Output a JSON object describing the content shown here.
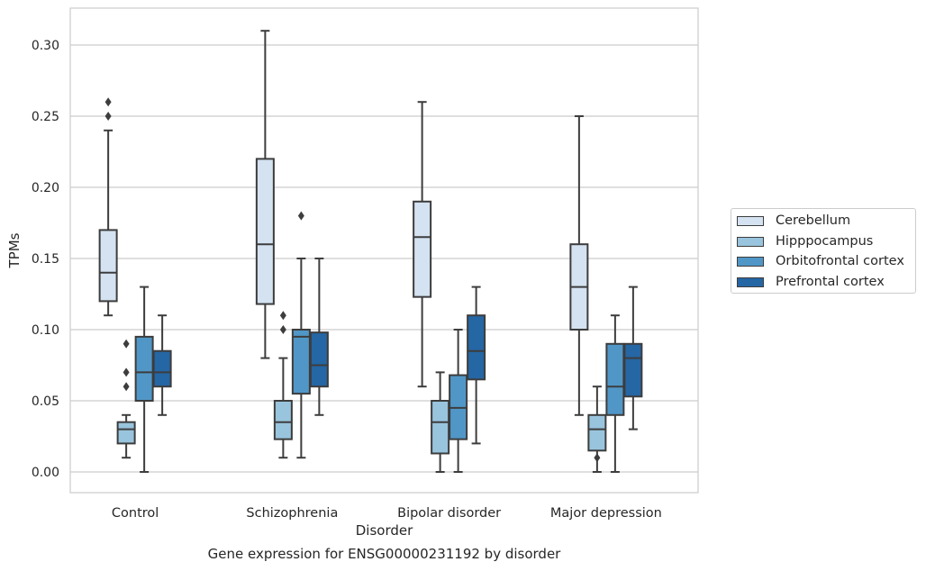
{
  "chart_data": {
    "type": "box",
    "caption": "Gene expression for ENSG00000231192 by disorder",
    "xlabel": "Disorder",
    "ylabel": "TPMs",
    "ylim": [
      -0.015,
      0.326
    ],
    "yticks": [
      "0.00",
      "0.05",
      "0.10",
      "0.15",
      "0.20",
      "0.25",
      "0.30"
    ],
    "grid": "horizontal",
    "legend_placement": "right, outside plot",
    "categories": [
      "Control",
      "Schizophrenia",
      "Bipolar disorder",
      "Major depression"
    ],
    "series": [
      {
        "name": "Cerebellum",
        "color": "#d4e2f1",
        "boxes": [
          {
            "whislo": 0.11,
            "q1": 0.12,
            "med": 0.14,
            "q3": 0.17,
            "whishi": 0.24,
            "fliers": [
              0.25,
              0.26
            ]
          },
          {
            "whislo": 0.08,
            "q1": 0.118,
            "med": 0.16,
            "q3": 0.22,
            "whishi": 0.31,
            "fliers": []
          },
          {
            "whislo": 0.06,
            "q1": 0.123,
            "med": 0.165,
            "q3": 0.19,
            "whishi": 0.26,
            "fliers": []
          },
          {
            "whislo": 0.04,
            "q1": 0.1,
            "med": 0.13,
            "q3": 0.16,
            "whishi": 0.25,
            "fliers": []
          }
        ]
      },
      {
        "name": "Hipppocampus",
        "color": "#99c4dd",
        "boxes": [
          {
            "whislo": 0.01,
            "q1": 0.02,
            "med": 0.03,
            "q3": 0.035,
            "whishi": 0.04,
            "fliers": [
              0.06,
              0.07,
              0.09
            ]
          },
          {
            "whislo": 0.01,
            "q1": 0.023,
            "med": 0.035,
            "q3": 0.05,
            "whishi": 0.08,
            "fliers": [
              0.1,
              0.11
            ]
          },
          {
            "whislo": 0.0,
            "q1": 0.013,
            "med": 0.035,
            "q3": 0.05,
            "whishi": 0.07,
            "fliers": []
          },
          {
            "whislo": 0.0,
            "q1": 0.015,
            "med": 0.03,
            "q3": 0.04,
            "whishi": 0.06,
            "fliers": [
              0.01
            ]
          }
        ]
      },
      {
        "name": "Orbitofrontal cortex",
        "color": "#5097c7",
        "boxes": [
          {
            "whislo": 0.0,
            "q1": 0.05,
            "med": 0.07,
            "q3": 0.095,
            "whishi": 0.13,
            "fliers": []
          },
          {
            "whislo": 0.01,
            "q1": 0.055,
            "med": 0.095,
            "q3": 0.1,
            "whishi": 0.15,
            "fliers": [
              0.18
            ]
          },
          {
            "whislo": 0.0,
            "q1": 0.023,
            "med": 0.045,
            "q3": 0.068,
            "whishi": 0.1,
            "fliers": []
          },
          {
            "whislo": 0.0,
            "q1": 0.04,
            "med": 0.06,
            "q3": 0.09,
            "whishi": 0.11,
            "fliers": []
          }
        ]
      },
      {
        "name": "Prefrontal cortex",
        "color": "#2566a4",
        "boxes": [
          {
            "whislo": 0.04,
            "q1": 0.06,
            "med": 0.07,
            "q3": 0.085,
            "whishi": 0.11,
            "fliers": []
          },
          {
            "whislo": 0.04,
            "q1": 0.06,
            "med": 0.075,
            "q3": 0.098,
            "whishi": 0.15,
            "fliers": []
          },
          {
            "whislo": 0.02,
            "q1": 0.065,
            "med": 0.085,
            "q3": 0.11,
            "whishi": 0.13,
            "fliers": []
          },
          {
            "whislo": 0.03,
            "q1": 0.053,
            "med": 0.08,
            "q3": 0.09,
            "whishi": 0.13,
            "fliers": []
          }
        ]
      }
    ]
  }
}
